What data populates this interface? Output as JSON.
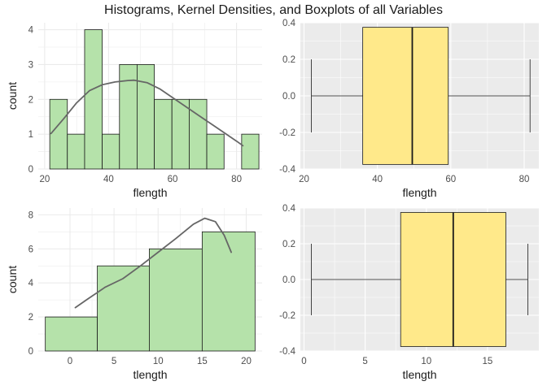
{
  "title": "Histograms, Kernel Densities, and Boxplots of all Variables",
  "colors": {
    "hist_fill": "#b5e2aa",
    "hist_stroke": "#1a1a1a",
    "density_line": "#666666",
    "box_fill": "#ffe98a",
    "box_panel_bg": "#ebebeb",
    "hist_panel_bg": "#ffffff"
  },
  "chart_data": [
    {
      "id": "hist-flength",
      "type": "bar",
      "variant": "histogram-with-density",
      "xlabel": "flength",
      "ylabel": "count",
      "xlim": [
        18,
        88
      ],
      "ylim": [
        0,
        4.2
      ],
      "xticks": [
        20,
        40,
        60,
        80
      ],
      "yticks": [
        0,
        1,
        2,
        3,
        4
      ],
      "grid": true,
      "bins": [
        {
          "x0": 21.6,
          "x1": 27.1,
          "count": 2
        },
        {
          "x0": 27.1,
          "x1": 32.5,
          "count": 1
        },
        {
          "x0": 32.5,
          "x1": 38.0,
          "count": 4
        },
        {
          "x0": 38.0,
          "x1": 43.4,
          "count": 1
        },
        {
          "x0": 43.4,
          "x1": 48.9,
          "count": 3
        },
        {
          "x0": 48.9,
          "x1": 54.3,
          "count": 3
        },
        {
          "x0": 54.3,
          "x1": 59.8,
          "count": 2
        },
        {
          "x0": 59.8,
          "x1": 65.2,
          "count": 2
        },
        {
          "x0": 65.2,
          "x1": 70.7,
          "count": 2
        },
        {
          "x0": 70.7,
          "x1": 76.1,
          "count": 1
        },
        {
          "x0": 76.1,
          "x1": 81.6,
          "count": 0
        },
        {
          "x0": 81.6,
          "x1": 87.0,
          "count": 1
        }
      ],
      "density": [
        [
          22,
          1.02
        ],
        [
          26,
          1.45
        ],
        [
          30,
          1.9
        ],
        [
          34,
          2.25
        ],
        [
          38,
          2.42
        ],
        [
          42,
          2.5
        ],
        [
          46,
          2.54
        ],
        [
          48,
          2.55
        ],
        [
          52,
          2.48
        ],
        [
          56,
          2.3
        ],
        [
          60,
          2.05
        ],
        [
          64,
          1.8
        ],
        [
          68,
          1.55
        ],
        [
          72,
          1.3
        ],
        [
          76,
          1.05
        ],
        [
          80,
          0.8
        ],
        [
          82,
          0.67
        ]
      ]
    },
    {
      "id": "box-flength",
      "type": "boxplot",
      "xlabel": "flength",
      "xlim": [
        19,
        84
      ],
      "ylim": [
        -0.4,
        0.4
      ],
      "xticks": [
        20,
        40,
        60,
        80
      ],
      "yticks": [
        -0.4,
        -0.2,
        0.0,
        0.2,
        0.4
      ],
      "ytick_labels": [
        "-0.4",
        "-0.2",
        "0.0",
        "0.2",
        "0.4"
      ],
      "grid": true,
      "box": {
        "min": 22.0,
        "q1": 36.0,
        "median": 49.5,
        "q3": 59.3,
        "max": 81.6,
        "box_half_height": 0.375,
        "whisker_half_height": 0.2
      }
    },
    {
      "id": "hist-tlength",
      "type": "bar",
      "variant": "histogram-with-density",
      "xlabel": "tlength",
      "ylabel": "count",
      "xlim": [
        -3.6,
        21.8
      ],
      "ylim": [
        0,
        8.4
      ],
      "xticks": [
        0,
        5,
        10,
        15,
        20
      ],
      "yticks": [
        0,
        2,
        4,
        6,
        8
      ],
      "grid": true,
      "bins": [
        {
          "x0": -2.8,
          "x1": 3.1,
          "count": 2
        },
        {
          "x0": 3.1,
          "x1": 9.0,
          "count": 5
        },
        {
          "x0": 9.0,
          "x1": 15.0,
          "count": 6
        },
        {
          "x0": 15.0,
          "x1": 21.0,
          "count": 7
        }
      ],
      "density": [
        [
          0.6,
          2.55
        ],
        [
          2,
          3.05
        ],
        [
          4,
          3.75
        ],
        [
          6,
          4.25
        ],
        [
          8,
          5.0
        ],
        [
          10,
          5.8
        ],
        [
          12,
          6.6
        ],
        [
          14,
          7.45
        ],
        [
          15.3,
          7.8
        ],
        [
          16.5,
          7.6
        ],
        [
          17.5,
          6.8
        ],
        [
          18.3,
          5.8
        ]
      ]
    },
    {
      "id": "box-tlength",
      "type": "boxplot",
      "xlabel": "tlength",
      "xlim": [
        -0.3,
        19.2
      ],
      "ylim": [
        -0.4,
        0.4
      ],
      "xticks": [
        0,
        5,
        10,
        15
      ],
      "yticks": [
        -0.4,
        -0.2,
        0.0,
        0.2,
        0.4
      ],
      "ytick_labels": [
        "-0.4",
        "-0.2",
        "0.0",
        "0.2",
        "0.4"
      ],
      "grid": true,
      "box": {
        "min": 0.6,
        "q1": 7.9,
        "median": 12.2,
        "q3": 16.5,
        "max": 18.3,
        "box_half_height": 0.375,
        "whisker_half_height": 0.2
      }
    }
  ]
}
